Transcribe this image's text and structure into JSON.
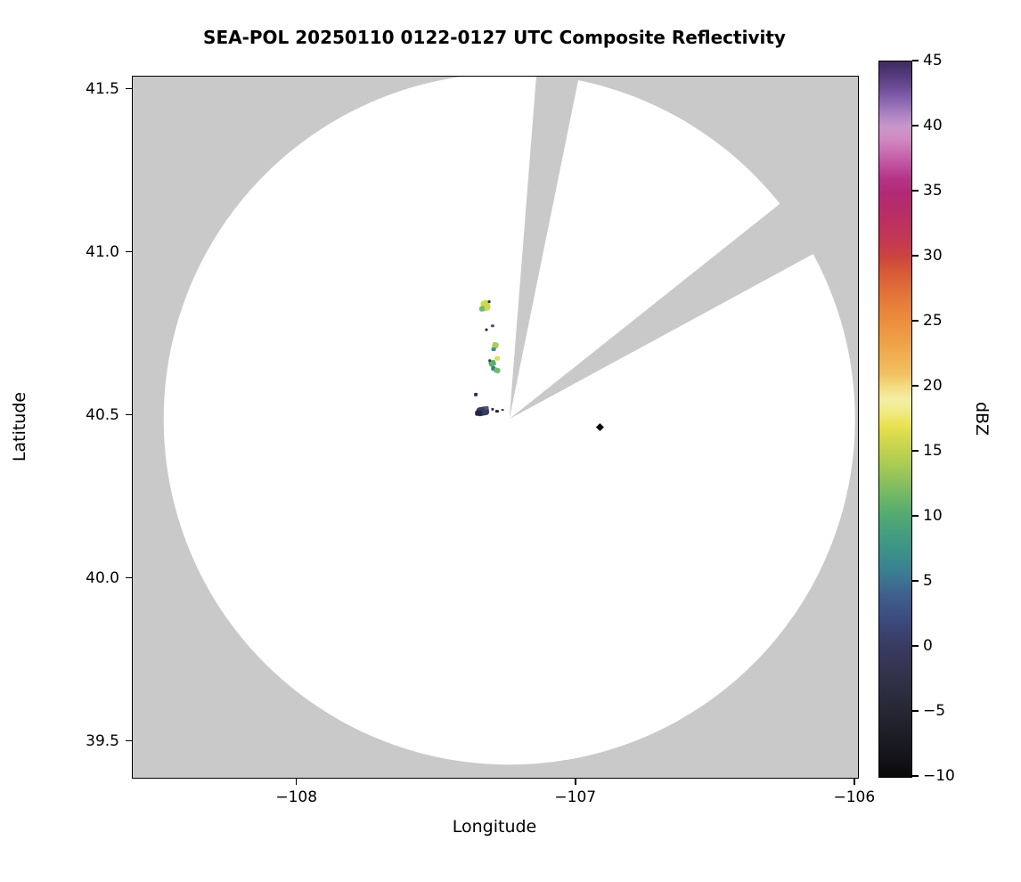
{
  "title": "SEA-POL 20250110 0122-0127 UTC Composite Reflectivity",
  "axes": {
    "xlabel": "Longitude",
    "ylabel": "Latitude",
    "x_ticks": [
      -108,
      -107,
      -106
    ],
    "y_ticks": [
      41.5,
      41.0,
      40.5,
      40.0,
      39.5
    ]
  },
  "colorbar": {
    "label": "dBZ",
    "min": -10,
    "max": 45,
    "ticks": [
      45,
      40,
      35,
      30,
      25,
      20,
      15,
      10,
      5,
      0,
      -5,
      -10
    ],
    "stops": [
      {
        "v": -10,
        "c": "#0a0a0c"
      },
      {
        "v": -8,
        "c": "#17171d"
      },
      {
        "v": -6,
        "c": "#21212c"
      },
      {
        "v": -4,
        "c": "#2a2b3c"
      },
      {
        "v": -2,
        "c": "#32344e"
      },
      {
        "v": 0,
        "c": "#383b60"
      },
      {
        "v": 2,
        "c": "#3c4a7d"
      },
      {
        "v": 4,
        "c": "#3f5f8c"
      },
      {
        "v": 5,
        "c": "#3d7292"
      },
      {
        "v": 6,
        "c": "#398292"
      },
      {
        "v": 8,
        "c": "#3f9883"
      },
      {
        "v": 10,
        "c": "#50a973"
      },
      {
        "v": 12,
        "c": "#7abb62"
      },
      {
        "v": 14,
        "c": "#aacb54"
      },
      {
        "v": 16,
        "c": "#d4d94c"
      },
      {
        "v": 17,
        "c": "#e9e250"
      },
      {
        "v": 18,
        "c": "#f1ea80"
      },
      {
        "v": 19,
        "c": "#f4efa5"
      },
      {
        "v": 20,
        "c": "#f3dc82"
      },
      {
        "v": 21,
        "c": "#f2c05f"
      },
      {
        "v": 23,
        "c": "#efa74b"
      },
      {
        "v": 25,
        "c": "#ec8f3d"
      },
      {
        "v": 27,
        "c": "#e37538"
      },
      {
        "v": 29,
        "c": "#d65737"
      },
      {
        "v": 30,
        "c": "#cc4340"
      },
      {
        "v": 31,
        "c": "#c53a4f"
      },
      {
        "v": 33,
        "c": "#ba2e63"
      },
      {
        "v": 35,
        "c": "#b12a76"
      },
      {
        "v": 36,
        "c": "#b53488"
      },
      {
        "v": 37,
        "c": "#c04f9e"
      },
      {
        "v": 38,
        "c": "#ca6cb1"
      },
      {
        "v": 39,
        "c": "#d089c1"
      },
      {
        "v": 40,
        "c": "#c897cb"
      },
      {
        "v": 41,
        "c": "#a981c1"
      },
      {
        "v": 42,
        "c": "#8a65af"
      },
      {
        "v": 43,
        "c": "#6c4c98"
      },
      {
        "v": 44,
        "c": "#54387a"
      },
      {
        "v": 45,
        "c": "#3d2b60"
      }
    ]
  },
  "chart_data": {
    "type": "radar_ppi_composite",
    "units": "dBZ",
    "xlim": [
      -108.59,
      -105.99
    ],
    "ylim": [
      39.39,
      41.54
    ],
    "colors": {
      "background": "#c9c9c9",
      "coverage": "#ffffff"
    },
    "radar": {
      "center_lon": -107.24,
      "center_lat": 40.49,
      "radius_lat_deg": 1.06,
      "blocked_sectors": [
        {
          "az_start": 4.5,
          "az_end": 11.5
        },
        {
          "az_start": 51.5,
          "az_end": 61.5
        }
      ]
    },
    "echoes": [
      {
        "lon": -107.325,
        "lat": 40.838,
        "w": 10,
        "h": 12,
        "rot": -15,
        "color": "#ccd84e"
      },
      {
        "lon": -107.338,
        "lat": 40.828,
        "w": 6,
        "h": 6,
        "color": "#6fb979"
      },
      {
        "lon": -107.312,
        "lat": 40.85,
        "w": 3,
        "h": 3,
        "color": "#2e3150"
      },
      {
        "lon": -107.3,
        "lat": 40.776,
        "w": 4,
        "h": 3,
        "color": "#4a5080"
      },
      {
        "lon": -107.322,
        "lat": 40.764,
        "w": 3,
        "h": 3,
        "color": "#262a44"
      },
      {
        "lon": -107.29,
        "lat": 40.716,
        "w": 7,
        "h": 7,
        "rot": 20,
        "color": "#a6ce5f"
      },
      {
        "lon": -107.296,
        "lat": 40.704,
        "w": 5,
        "h": 4,
        "color": "#3f8f8a"
      },
      {
        "lon": -107.283,
        "lat": 40.676,
        "w": 6,
        "h": 5,
        "color": "#d8e056"
      },
      {
        "lon": -107.301,
        "lat": 40.661,
        "w": 8,
        "h": 7,
        "rot": -20,
        "color": "#5fae6e"
      },
      {
        "lon": -107.297,
        "lat": 40.645,
        "w": 5,
        "h": 5,
        "color": "#2f7f8c"
      },
      {
        "lon": -107.284,
        "lat": 40.639,
        "w": 7,
        "h": 6,
        "rot": 15,
        "color": "#71b96a"
      },
      {
        "lon": -107.31,
        "lat": 40.669,
        "w": 3,
        "h": 3,
        "color": "#33365a"
      },
      {
        "lon": -107.36,
        "lat": 40.565,
        "w": 4,
        "h": 4,
        "color": "#2c3054"
      },
      {
        "lon": -107.335,
        "lat": 40.514,
        "w": 14,
        "h": 10,
        "rot": -10,
        "color": "#363a5e"
      },
      {
        "lon": -107.35,
        "lat": 40.508,
        "w": 8,
        "h": 6,
        "color": "#23263f"
      },
      {
        "lon": -107.322,
        "lat": 40.524,
        "w": 5,
        "h": 4,
        "color": "#50568a"
      },
      {
        "lon": -107.3,
        "lat": 40.52,
        "w": 3,
        "h": 3,
        "color": "#2c3054"
      },
      {
        "lon": -107.284,
        "lat": 40.514,
        "w": 4,
        "h": 3,
        "color": "#1e2135"
      },
      {
        "lon": -107.264,
        "lat": 40.518,
        "w": 3,
        "h": 2,
        "color": "#30345a"
      },
      {
        "lon": -106.915,
        "lat": 40.465,
        "shape": "diamond",
        "size": 9,
        "color": "#0d0d0d"
      }
    ]
  }
}
